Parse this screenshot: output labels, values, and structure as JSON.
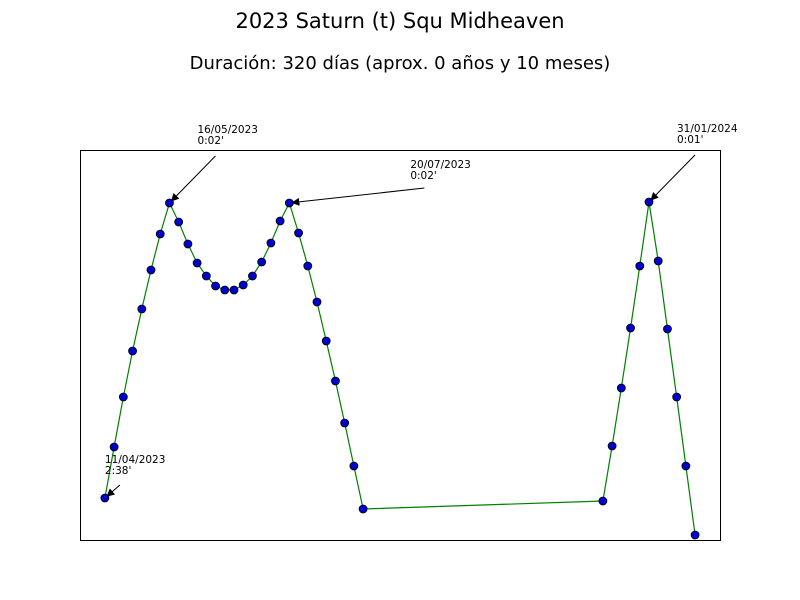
{
  "chart_data": {
    "type": "line",
    "title": "2023 Saturn (t) Squ Midheaven",
    "subtitle": "Duración: 320 días (aprox. 0 años y 10 meses)",
    "x": [
      0,
      5,
      10,
      15,
      20,
      25,
      30,
      35,
      40,
      45,
      50,
      55,
      60,
      65,
      70,
      75,
      80,
      85,
      90,
      95,
      100,
      105,
      110,
      115,
      120,
      125,
      130,
      135,
      140,
      270,
      275,
      280,
      285,
      290,
      295,
      300,
      305,
      310,
      315,
      320
    ],
    "series": [
      {
        "line_color": "#008000",
        "marker_color": "#0000cc",
        "values": [
          42,
          93,
          143,
          189,
          231,
          270,
          306,
          337,
          318,
          296,
          277,
          264,
          254,
          250,
          250,
          255,
          264,
          278,
          297,
          319,
          337,
          307,
          274,
          238,
          199,
          159,
          117,
          74,
          31,
          39,
          94,
          152,
          212,
          274,
          338,
          279,
          211,
          143,
          74,
          5
        ]
      }
    ],
    "xlim": [
      -13.5,
      333.5
    ],
    "ylim": [
      0,
      390
    ],
    "annotations": [
      {
        "point": 0,
        "lines": [
          "11/04/2023",
          "2:38'"
        ]
      },
      {
        "point": 7,
        "lines": [
          "16/05/2023",
          "0:02'"
        ]
      },
      {
        "point": 20,
        "lines": [
          "20/07/2023",
          "0:02'"
        ]
      },
      {
        "point": 34,
        "lines": [
          "31/01/2024",
          "0:01'"
        ]
      }
    ]
  }
}
